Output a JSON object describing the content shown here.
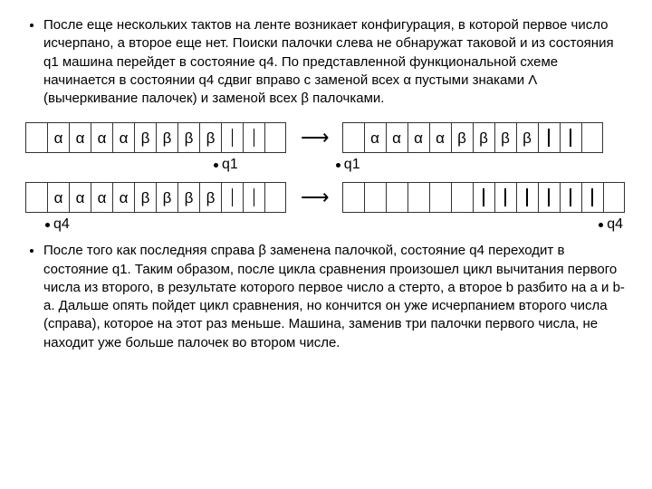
{
  "paragraph1": "После еще нескольких тактов на ленте возникает конфигурация, в которой первое число исчерпано, а второе еще нет. Поиски палочки слева не обнаружат таковой и из состояния q1 машина перейдет в состояние q4. По представленной функциональной схеме начинается в состоянии q4 сдвиг вправо с заменой всех α пустыми знаками Λ (вычеркивание палочек) и заменой всех β палочками.",
  "paragraph2": "После того как последняя справа β заменена палочкой, состояние q4 переходит в состояние q1. Таким образом, после цикла сравнения произошел цикл вычитания первого числа из второго, в результате которого первое число a стерто, а второе b разбито на a и b-a. Дальше опять пойдет цикл сравнения, но кончится он уже исчерпанием второго числа (справа), которое на этот раз меньше. Машина, заменив три палочки первого числа, не находит уже больше палочек во втором числе.",
  "labels": {
    "q1": "q1",
    "q4": "q4"
  },
  "tapes": {
    "t1": [
      "",
      "α",
      "α",
      "α",
      "α",
      "β",
      "β",
      "β",
      "β",
      "|",
      "|",
      ""
    ],
    "t2": [
      "",
      "α",
      "α",
      "α",
      "α",
      "β",
      "β",
      "β",
      "β",
      "|",
      "|",
      ""
    ],
    "t3": [
      "",
      "α",
      "α",
      "α",
      "α",
      "β",
      "β",
      "β",
      "β",
      "|",
      "|",
      ""
    ],
    "t4": [
      "",
      "",
      "",
      "",
      "",
      "",
      "|",
      "|",
      "|",
      "|",
      "|",
      "|",
      ""
    ]
  },
  "colors": {
    "border": "#333333",
    "text": "#000000",
    "bg": "#ffffff"
  }
}
